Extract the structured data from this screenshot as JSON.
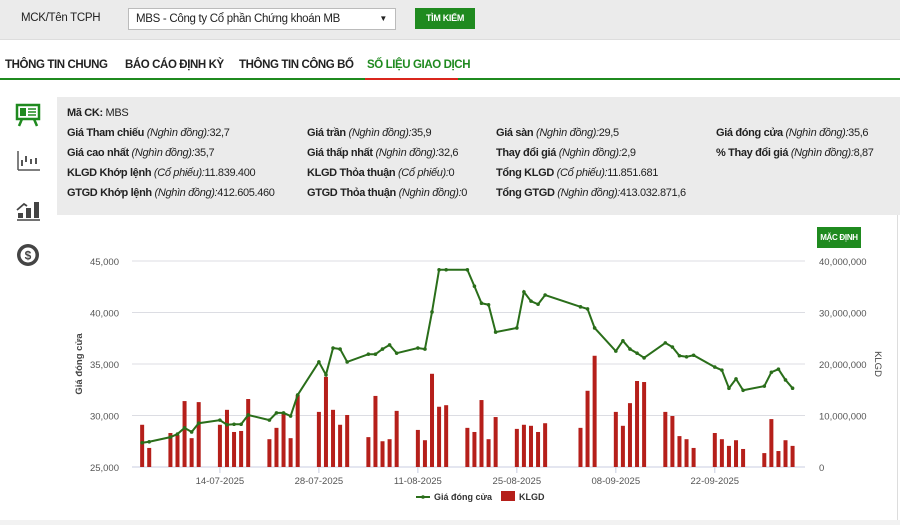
{
  "search": {
    "label": "MCK/Tên TCPH",
    "selected": "MBS - Công ty Cổ phần Chứng khoán MB",
    "button": "TÌM KIẾM"
  },
  "tabs": [
    {
      "label": "THÔNG TIN CHUNG",
      "active": false
    },
    {
      "label": "BÁO CÁO ĐỊNH KỲ",
      "active": false
    },
    {
      "label": "THÔNG TIN CÔNG BỐ",
      "active": false
    },
    {
      "label": "SỐ LIỆU GIAO DỊCH",
      "active": true
    }
  ],
  "sidebar": [
    "presentation-board-icon",
    "candlestick-chart-icon",
    "growth-chart-icon",
    "dollar-coin-icon"
  ],
  "info": {
    "ma_ck": {
      "label": "Mã CK:",
      "value": "MBS"
    },
    "items": [
      {
        "label": "Giá Tham chiếu",
        "unit": "(Nghìn đồng):",
        "value": "32,7"
      },
      {
        "label": "Giá trần",
        "unit": "(Nghìn đồng):",
        "value": "35,9"
      },
      {
        "label": "Giá sàn",
        "unit": "(Nghìn đồng):",
        "value": "29,5"
      },
      {
        "label": "Giá đóng cửa",
        "unit": "(Nghìn đồng):",
        "value": "35,6"
      },
      {
        "label": "Giá cao nhất",
        "unit": "(Nghìn đồng):",
        "value": "35,7"
      },
      {
        "label": "Giá thấp nhất",
        "unit": "(Nghìn đồng):",
        "value": "32,6"
      },
      {
        "label": "Thay đổi giá",
        "unit": "(Nghìn đồng):",
        "value": "2,9"
      },
      {
        "label": "% Thay đổi giá",
        "unit": "(Nghìn đồng):",
        "value": "8,87"
      },
      {
        "label": "KLGD Khớp lệnh",
        "unit": "(Cổ phiếu):",
        "value": "11.839.400"
      },
      {
        "label": "KLGD Thỏa thuận",
        "unit": "(Cổ phiếu):",
        "value": "0"
      },
      {
        "label": "Tổng KLGD",
        "unit": "(Cổ phiếu):",
        "value": "11.851.681"
      },
      {
        "label": "GTGD Khớp lệnh",
        "unit": "(Nghìn đồng):",
        "value": "412.605.460"
      },
      {
        "label": "GTGD Thỏa thuận",
        "unit": "(Nghìn đồng):",
        "value": "0"
      },
      {
        "label": "Tổng GTGD",
        "unit": "(Nghìn đồng):",
        "value": "413.032.871,6"
      }
    ]
  },
  "chart_controls": {
    "default_button": "MẶC ĐỊNH"
  },
  "chart_data": {
    "type": "line+bar",
    "ylabel": "Giá đóng cửa",
    "y2label": "KLGD",
    "ylim": [
      25000,
      45000
    ],
    "y2lim": [
      0,
      40000000
    ],
    "yticks": [
      "25,000",
      "30,000",
      "35,000",
      "40,000",
      "45,000"
    ],
    "y2ticks": [
      "0",
      "10,000,000",
      "20,000,000",
      "30,000,000",
      "40,000,000"
    ],
    "xticks": [
      "14-07-2025",
      "28-07-2025",
      "11-08-2025",
      "25-08-2025",
      "08-09-2025",
      "22-09-2025"
    ],
    "legend": [
      {
        "name": "Giá đóng cửa",
        "color": "#2a6e1a"
      },
      {
        "name": "KLGD",
        "color": "#b51f1a"
      }
    ],
    "legend_position": "bottom",
    "grid": true,
    "dates": [
      "03-07-2025",
      "04-07-2025",
      "07-07-2025",
      "08-07-2025",
      "09-07-2025",
      "10-07-2025",
      "11-07-2025",
      "14-07-2025",
      "15-07-2025",
      "16-07-2025",
      "17-07-2025",
      "18-07-2025",
      "21-07-2025",
      "22-07-2025",
      "23-07-2025",
      "24-07-2025",
      "25-07-2025",
      "28-07-2025",
      "29-07-2025",
      "30-07-2025",
      "31-07-2025",
      "01-08-2025",
      "04-08-2025",
      "05-08-2025",
      "06-08-2025",
      "07-08-2025",
      "08-08-2025",
      "11-08-2025",
      "12-08-2025",
      "13-08-2025",
      "14-08-2025",
      "15-08-2025",
      "18-08-2025",
      "19-08-2025",
      "20-08-2025",
      "21-08-2025",
      "22-08-2025",
      "25-08-2025",
      "26-08-2025",
      "27-08-2025",
      "28-08-2025",
      "29-08-2025",
      "03-09-2025",
      "04-09-2025",
      "05-09-2025",
      "08-09-2025",
      "09-09-2025",
      "10-09-2025",
      "11-09-2025",
      "12-09-2025",
      "15-09-2025",
      "16-09-2025",
      "17-09-2025",
      "18-09-2025",
      "19-09-2025",
      "22-09-2025",
      "23-09-2025",
      "24-09-2025",
      "25-09-2025",
      "26-09-2025",
      "29-09-2025",
      "30-09-2025",
      "01-10-2025",
      "02-10-2025",
      "03-10-2025"
    ],
    "close": [
      27350,
      27450,
      27900,
      28200,
      28800,
      28400,
      29250,
      29550,
      29100,
      29150,
      29150,
      30050,
      29550,
      30250,
      30250,
      29950,
      32000,
      35200,
      33950,
      36550,
      36450,
      35200,
      35950,
      35950,
      36450,
      36850,
      36050,
      36550,
      36450,
      40050,
      44150,
      44150,
      44150,
      42550,
      40900,
      40750,
      38100,
      38500,
      42000,
      41100,
      40800,
      41700,
      40550,
      40350,
      38500,
      36250,
      37250,
      36450,
      36050,
      35600,
      37050,
      36650,
      35800,
      35700,
      35850,
      34700,
      34400,
      32650,
      33550,
      32450,
      32850,
      34200,
      34500,
      33450,
      32650
    ],
    "volume": [
      8200000,
      3700000,
      6600000,
      6200000,
      12800000,
      5600000,
      12600000,
      8200000,
      11100000,
      6800000,
      7000000,
      13200000,
      5400000,
      7600000,
      10500000,
      5600000,
      14000000,
      10700000,
      17500000,
      11100000,
      8200000,
      10100000,
      5800000,
      13800000,
      5000000,
      5400000,
      10900000,
      7200000,
      5200000,
      18100000,
      11700000,
      12000000,
      7600000,
      6800000,
      13000000,
      5400000,
      9700000,
      7400000,
      8200000,
      8000000,
      6800000,
      8500000,
      7600000,
      14800000,
      21600000,
      10700000,
      8000000,
      12400000,
      16700000,
      16500000,
      10700000,
      9900000,
      6000000,
      5400000,
      3700000,
      6600000,
      5400000,
      4100000,
      5200000,
      3500000,
      2700000,
      9300000,
      3100000,
      5200000,
      4100000
    ]
  }
}
